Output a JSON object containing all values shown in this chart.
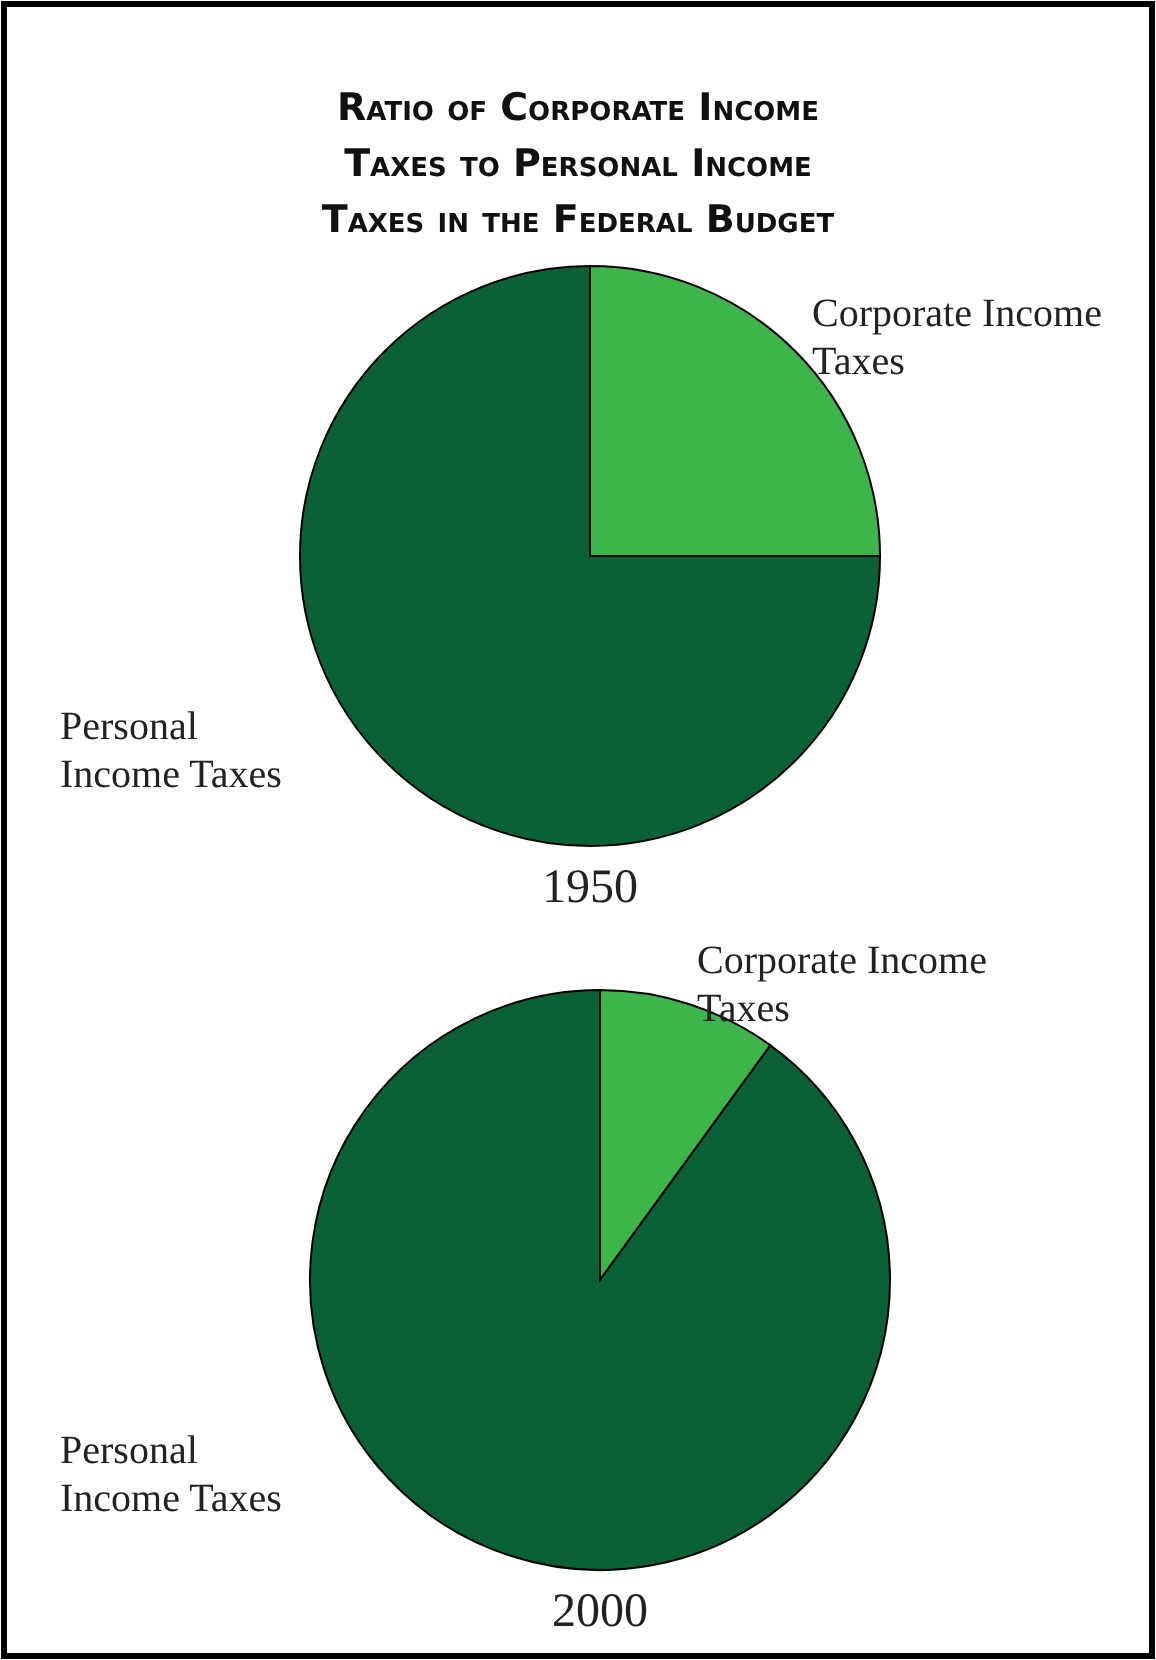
{
  "chart_data": [
    {
      "type": "pie",
      "title": "Ratio of Corporate Income Taxes to Personal Income Taxes in the Federal Budget",
      "xlabel": "1950",
      "categories": [
        "Corporate Income Taxes",
        "Personal Income Taxes"
      ],
      "values": [
        25,
        75
      ],
      "colors": [
        "#3db54a",
        "#0b6136"
      ]
    },
    {
      "type": "pie",
      "xlabel": "2000",
      "categories": [
        "Corporate Income Taxes",
        "Personal Income Taxes"
      ],
      "values": [
        10,
        90
      ],
      "colors": [
        "#3db54a",
        "#0b6136"
      ]
    }
  ]
}
